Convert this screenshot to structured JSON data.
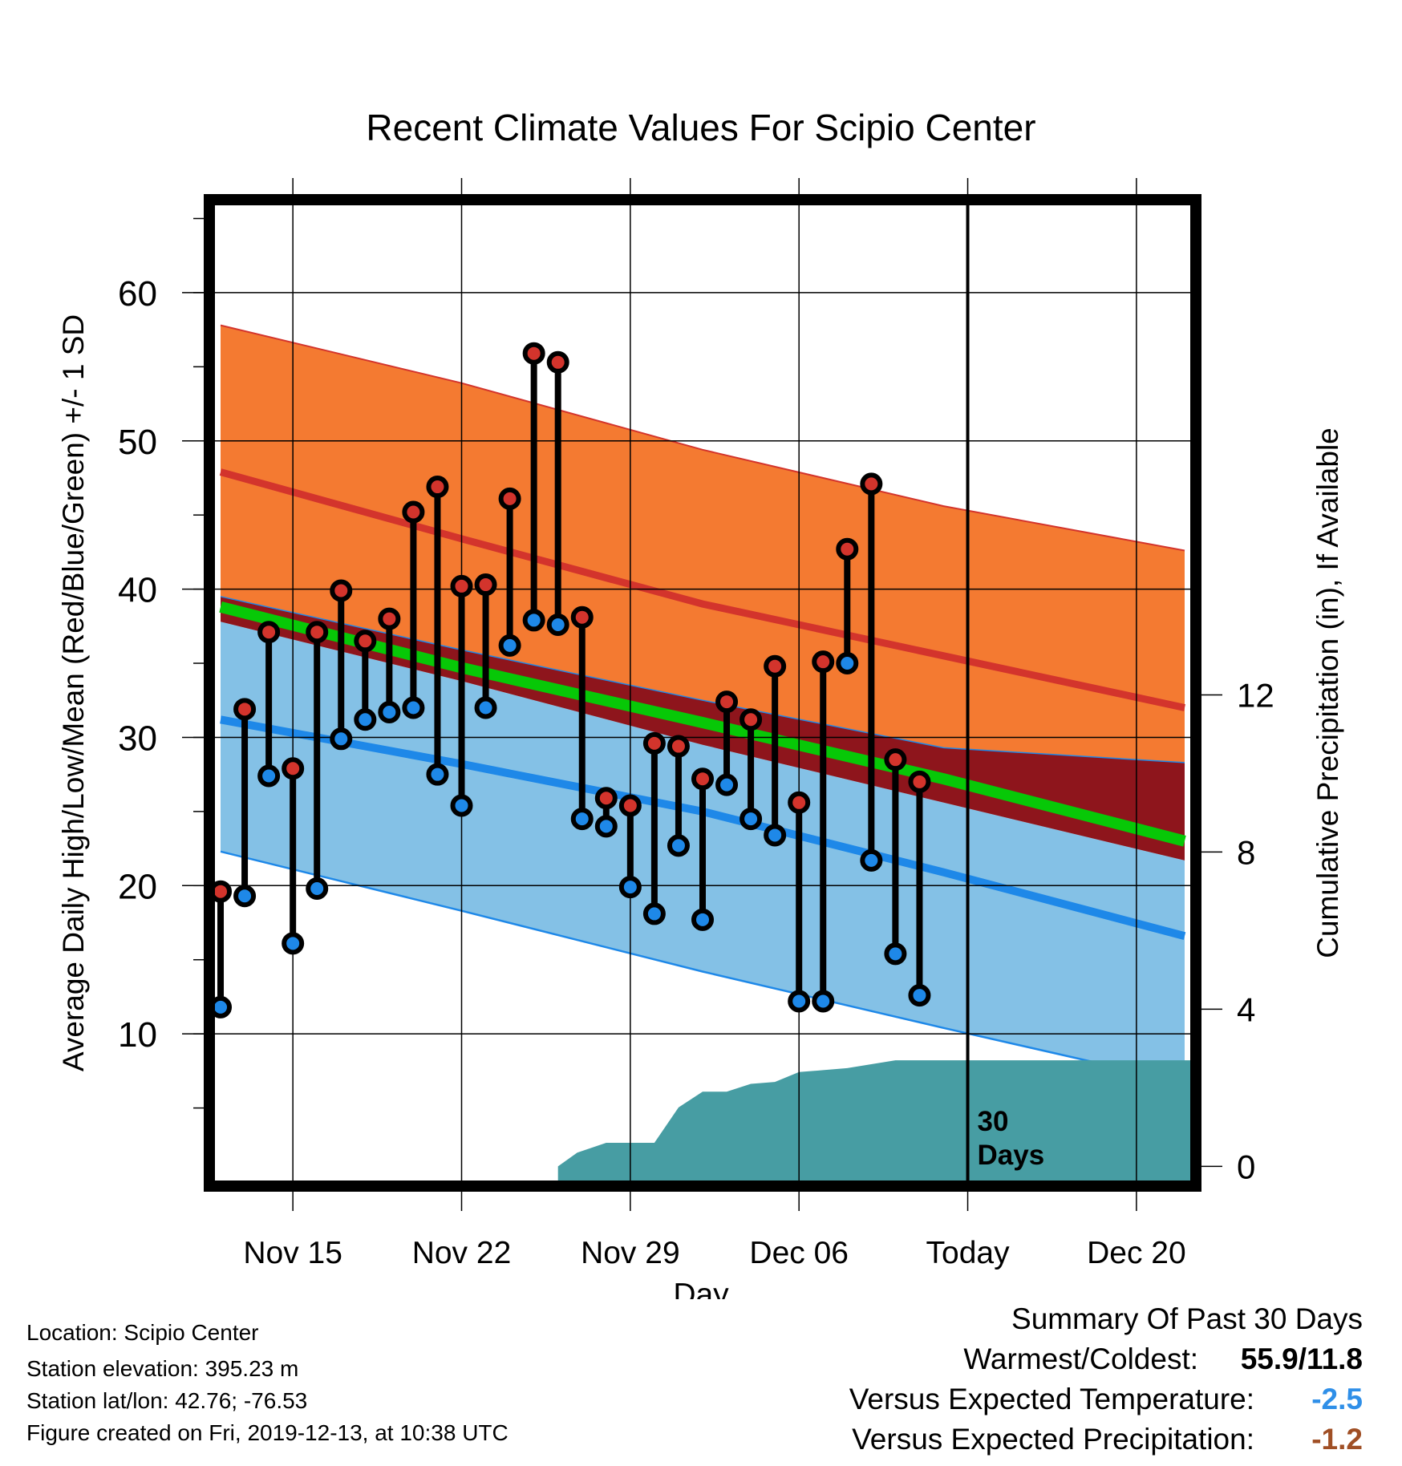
{
  "chart_data": {
    "type": "line",
    "title": "Recent Climate Values For Scipio Center",
    "xlabel": "Day",
    "ylabel": "Average Daily High/Low/Mean (Red/Blue/Green) +/- 1 SD",
    "y2label": "Cumulative Precipitation (in), If Available",
    "ylim": [
      0,
      66
    ],
    "y2lim": [
      -0.4,
      24.5
    ],
    "yticks": [
      10,
      20,
      30,
      40,
      50,
      60
    ],
    "y2ticks": [
      0,
      4,
      8,
      12
    ],
    "xticks": [
      {
        "day": 15,
        "label": "Nov 15"
      },
      {
        "day": 22,
        "label": "Nov 22"
      },
      {
        "day": 29,
        "label": "Nov 29"
      },
      {
        "day": 36,
        "label": "Dec 06"
      },
      {
        "day": 43,
        "label": "Today"
      },
      {
        "day": 50,
        "label": "Dec 20"
      }
    ],
    "xlim": [
      11.7,
      52.3
    ],
    "today_day": 43,
    "today_label": [
      "30",
      "Days"
    ],
    "grid": true,
    "colors": {
      "high_band": "#f47a31",
      "high_mean": "#d3342c",
      "overlap_band": "#8e151c",
      "low_band": "#84c1e6",
      "low_mean": "#1e88e8",
      "mean_line": "#07c807",
      "precip": "#479da3",
      "high_marker": "#d3342c",
      "low_marker": "#1e88e8"
    },
    "normals": {
      "day": [
        12,
        22,
        32,
        42,
        52
      ],
      "high_upper": [
        57.8,
        53.9,
        49.4,
        45.6,
        42.6
      ],
      "high_mean": [
        47.9,
        43.4,
        39.0,
        35.5,
        32.0
      ],
      "high_lower": [
        39.5,
        35.9,
        32.5,
        29.3,
        28.3
      ],
      "mean": [
        38.8,
        34.7,
        31.0,
        27.2,
        23.0
      ],
      "low_upper": [
        37.8,
        33.8,
        29.5,
        25.6,
        21.7
      ],
      "low_mean": [
        31.2,
        28.2,
        25.0,
        20.9,
        16.6
      ],
      "low_lower": [
        22.3,
        18.3,
        14.2,
        10.4,
        6.7
      ]
    },
    "observed": {
      "day": [
        12,
        13,
        14,
        15,
        16,
        17,
        18,
        19,
        20,
        21,
        22,
        23,
        24,
        25,
        26,
        27,
        28,
        29,
        30,
        31,
        32,
        33,
        34,
        35,
        36,
        37,
        38,
        39,
        40,
        41,
        42
      ],
      "high": [
        19.6,
        31.9,
        37.1,
        27.9,
        37.1,
        39.9,
        36.5,
        38.0,
        45.2,
        46.9,
        40.2,
        40.3,
        46.1,
        55.9,
        55.3,
        38.1,
        25.9,
        25.4,
        29.6,
        29.4,
        27.2,
        32.4,
        31.2,
        34.8,
        25.6,
        35.1,
        42.7,
        47.1,
        28.5,
        27.0,
        null
      ],
      "low": [
        11.8,
        19.3,
        27.4,
        16.1,
        19.8,
        29.9,
        31.2,
        31.7,
        32.0,
        27.5,
        25.4,
        32.0,
        36.2,
        37.9,
        37.6,
        24.5,
        24.0,
        19.9,
        18.1,
        22.7,
        17.7,
        26.8,
        24.5,
        23.4,
        12.2,
        12.2,
        35.0,
        21.7,
        15.4,
        12.6,
        null
      ]
    },
    "precip": {
      "day": [
        26,
        26.8,
        28,
        29,
        30,
        31,
        32,
        33,
        34,
        35,
        36,
        37,
        38,
        39,
        40,
        41,
        52.3
      ],
      "value": [
        0.0,
        0.35,
        0.6,
        0.6,
        0.6,
        1.5,
        1.9,
        1.9,
        2.1,
        2.15,
        2.4,
        2.45,
        2.5,
        2.6,
        2.7,
        2.7,
        2.7
      ]
    }
  },
  "info": {
    "location": "Location: Scipio Center",
    "elevation": "Station elevation: 395.23 m",
    "latlon": "Station lat/lon: 42.76; -76.53",
    "created": "Figure created on Fri, 2019-12-13, at 10:38 UTC"
  },
  "summary": {
    "title": "Summary Of Past 30 Days",
    "warm_cold_label": "Warmest/Coldest:",
    "warm_cold_value": "55.9/11.8",
    "temp_label": "Versus Expected Temperature:",
    "temp_value": "-2.5",
    "temp_color": "#2f8fe8",
    "precip_label": "Versus Expected Precipitation:",
    "precip_value": "-1.2",
    "precip_color": "#a04f25"
  }
}
